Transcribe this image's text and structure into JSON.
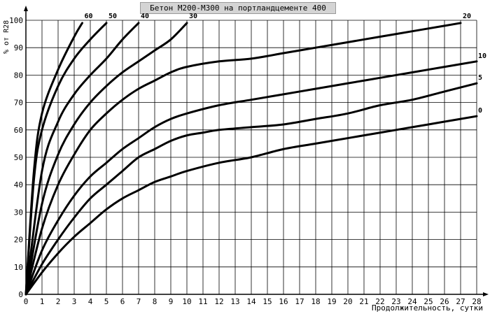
{
  "chart_data": {
    "type": "line",
    "title": "Бетон М200-М300 на портландцементе 400",
    "xlabel": "Продолжительность, сутки",
    "ylabel": "% от R28",
    "xlim": [
      0,
      28
    ],
    "ylim": [
      0,
      100
    ],
    "xticks": [
      "0",
      "1",
      "2",
      "3",
      "4",
      "5",
      "6",
      "7",
      "8",
      "9",
      "10",
      "11",
      "12",
      "13",
      "14",
      "15",
      "16",
      "17",
      "18",
      "19",
      "20",
      "21",
      "22",
      "23",
      "24",
      "25",
      "26",
      "27",
      "28"
    ],
    "yticks": [
      "0",
      "10",
      "20",
      "30",
      "40",
      "50",
      "60",
      "70",
      "80",
      "90",
      "100"
    ],
    "grid": true,
    "series": [
      {
        "name": "0",
        "points": [
          [
            0,
            0
          ],
          [
            1,
            8
          ],
          [
            2,
            15
          ],
          [
            3,
            21
          ],
          [
            4,
            26
          ],
          [
            5,
            31
          ],
          [
            6,
            35
          ],
          [
            7,
            38
          ],
          [
            8,
            41
          ],
          [
            9,
            43
          ],
          [
            10,
            45
          ],
          [
            12,
            48
          ],
          [
            14,
            50
          ],
          [
            16,
            53
          ],
          [
            18,
            55
          ],
          [
            20,
            57
          ],
          [
            22,
            59
          ],
          [
            24,
            61
          ],
          [
            26,
            63
          ],
          [
            28,
            65
          ]
        ]
      },
      {
        "name": "5",
        "points": [
          [
            0,
            0
          ],
          [
            1,
            11
          ],
          [
            2,
            20
          ],
          [
            3,
            28
          ],
          [
            4,
            35
          ],
          [
            5,
            40
          ],
          [
            6,
            45
          ],
          [
            7,
            50
          ],
          [
            8,
            53
          ],
          [
            9,
            56
          ],
          [
            10,
            58
          ],
          [
            11,
            59
          ],
          [
            12,
            60
          ],
          [
            14,
            61
          ],
          [
            16,
            62
          ],
          [
            18,
            64
          ],
          [
            20,
            66
          ],
          [
            22,
            69
          ],
          [
            24,
            71
          ],
          [
            26,
            74
          ],
          [
            28,
            77
          ]
        ]
      },
      {
        "name": "10",
        "points": [
          [
            0,
            0
          ],
          [
            1,
            16
          ],
          [
            2,
            27
          ],
          [
            3,
            36
          ],
          [
            4,
            43
          ],
          [
            5,
            48
          ],
          [
            6,
            53
          ],
          [
            7,
            57
          ],
          [
            8,
            61
          ],
          [
            9,
            64
          ],
          [
            10,
            66
          ],
          [
            12,
            69
          ],
          [
            14,
            71
          ],
          [
            16,
            73
          ],
          [
            18,
            75
          ],
          [
            20,
            77
          ],
          [
            22,
            79
          ],
          [
            24,
            81
          ],
          [
            26,
            83
          ],
          [
            28,
            85
          ]
        ]
      },
      {
        "name": "20",
        "points": [
          [
            0,
            0
          ],
          [
            1,
            24
          ],
          [
            2,
            40
          ],
          [
            3,
            51
          ],
          [
            4,
            60
          ],
          [
            5,
            66
          ],
          [
            6,
            71
          ],
          [
            7,
            75
          ],
          [
            8,
            78
          ],
          [
            9,
            81
          ],
          [
            10,
            83
          ],
          [
            12,
            85
          ],
          [
            14,
            86
          ],
          [
            16,
            88
          ],
          [
            18,
            90
          ],
          [
            20,
            92
          ],
          [
            22,
            94
          ],
          [
            24,
            96
          ],
          [
            26,
            98
          ],
          [
            27,
            99
          ]
        ]
      },
      {
        "name": "30",
        "points": [
          [
            0,
            0
          ],
          [
            1,
            33
          ],
          [
            2,
            51
          ],
          [
            3,
            62
          ],
          [
            4,
            70
          ],
          [
            5,
            76
          ],
          [
            6,
            81
          ],
          [
            7,
            85
          ],
          [
            8,
            89
          ],
          [
            9,
            93
          ],
          [
            10,
            99
          ]
        ]
      },
      {
        "name": "40",
        "points": [
          [
            0,
            0
          ],
          [
            1,
            45
          ],
          [
            2,
            63
          ],
          [
            3,
            73
          ],
          [
            4,
            80
          ],
          [
            5,
            86
          ],
          [
            6,
            93
          ],
          [
            7,
            99
          ]
        ]
      },
      {
        "name": "50",
        "points": [
          [
            0,
            0
          ],
          [
            0.5,
            42
          ],
          [
            1,
            60
          ],
          [
            2,
            76
          ],
          [
            3,
            86
          ],
          [
            4,
            93
          ],
          [
            5,
            99
          ]
        ]
      },
      {
        "name": "60",
        "points": [
          [
            0,
            0
          ],
          [
            0.5,
            45
          ],
          [
            1,
            66
          ],
          [
            2,
            82
          ],
          [
            3,
            94
          ],
          [
            3.5,
            99
          ]
        ]
      }
    ]
  }
}
